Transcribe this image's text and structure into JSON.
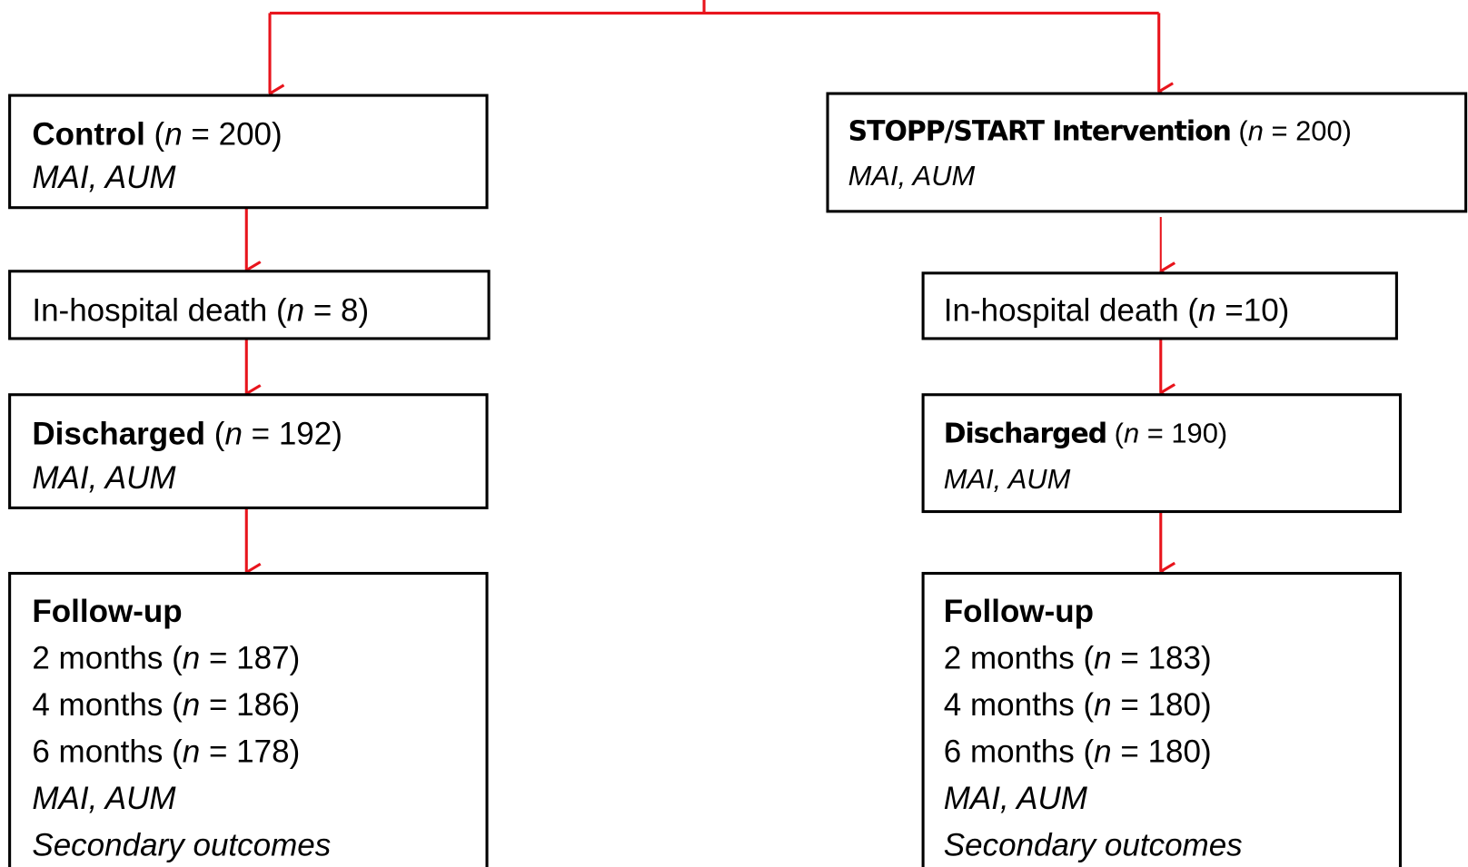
{
  "boxes": [
    {
      "lines": [
        [
          {
            "t": "Control",
            "s": "b"
          },
          {
            "t": " ("
          },
          {
            "t": "n",
            "s": "i"
          },
          {
            "t": " = 200)"
          }
        ],
        [
          {
            "t": "MAI, AUM",
            "s": "i"
          }
        ]
      ]
    },
    {
      "lines": [
        [
          {
            "t": "In-hospital death ("
          },
          {
            "t": "n",
            "s": "i"
          },
          {
            "t": " = 8)"
          }
        ]
      ]
    },
    {
      "lines": [
        [
          {
            "t": "Discharged",
            "s": "b"
          },
          {
            "t": " ("
          },
          {
            "t": "n",
            "s": "i"
          },
          {
            "t": " = 192)"
          }
        ],
        [
          {
            "t": "MAI, AUM",
            "s": "i"
          }
        ]
      ]
    },
    {
      "lines": [
        [
          {
            "t": "Follow-up",
            "s": "b"
          }
        ],
        [
          {
            "t": "2 months ("
          },
          {
            "t": "n",
            "s": "i"
          },
          {
            "t": " = 187)"
          }
        ],
        [
          {
            "t": "4 months ("
          },
          {
            "t": "n",
            "s": "i"
          },
          {
            "t": " = 186)"
          }
        ],
        [
          {
            "t": "6 months ("
          },
          {
            "t": "n",
            "s": "i"
          },
          {
            "t": " = 178)"
          }
        ],
        [
          {
            "t": "MAI, AUM",
            "s": "i"
          }
        ],
        [
          {
            "t": "Secondary outcomes",
            "s": "i"
          }
        ]
      ]
    },
    {
      "lines": [
        [
          {
            "t": "STOPP/START Intervention",
            "s": "sb"
          },
          {
            "t": " ("
          },
          {
            "t": "n",
            "s": "i"
          },
          {
            "t": " = 200)"
          }
        ],
        [
          {
            "t": "MAI, AUM",
            "s": "i"
          }
        ]
      ],
      "size": "small"
    },
    {
      "lines": [
        [
          {
            "t": "In-hospital death ("
          },
          {
            "t": "n",
            "s": "i"
          },
          {
            "t": " =10)"
          }
        ]
      ]
    },
    {
      "lines": [
        [
          {
            "t": "Discharged",
            "s": "sb"
          },
          {
            "t": " ("
          },
          {
            "t": "n",
            "s": "i"
          },
          {
            "t": " = 190)"
          }
        ],
        [
          {
            "t": "MAI, AUM",
            "s": "i"
          }
        ]
      ],
      "size": "small"
    },
    {
      "lines": [
        [
          {
            "t": "Follow-up",
            "s": "b"
          }
        ],
        [
          {
            "t": "2 months ("
          },
          {
            "t": "n",
            "s": "i"
          },
          {
            "t": " = 183)"
          }
        ],
        [
          {
            "t": "4 months ("
          },
          {
            "t": "n",
            "s": "i"
          },
          {
            "t": " = 180)"
          }
        ],
        [
          {
            "t": "6 months ("
          },
          {
            "t": "n",
            "s": "i"
          },
          {
            "t": " = 180)"
          }
        ],
        [
          {
            "t": "MAI, AUM",
            "s": "i"
          }
        ],
        [
          {
            "t": "Secondary outcomes",
            "s": "i"
          }
        ]
      ]
    }
  ]
}
